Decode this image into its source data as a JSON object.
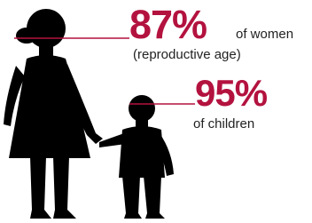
{
  "stats": [
    {
      "value": "87%",
      "label": "of women",
      "sublabel": "(reproductive age)"
    },
    {
      "value": "95%",
      "label": "of children"
    }
  ]
}
